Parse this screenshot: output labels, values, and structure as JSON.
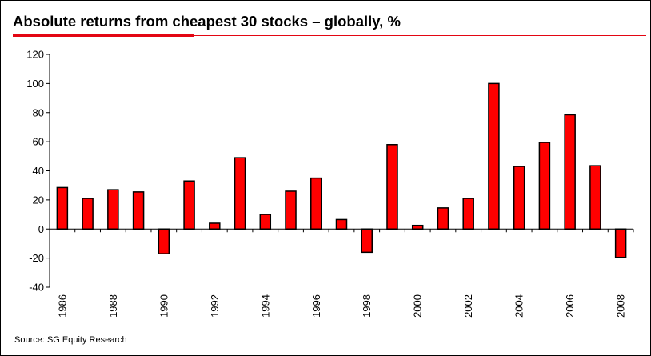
{
  "title": "Absolute returns from cheapest 30 stocks – globally, %",
  "source": "Source: SG Equity Research",
  "colors": {
    "bar_fill": "#ff0000",
    "bar_stroke": "#000000",
    "accent": "#e30613"
  },
  "chart_data": {
    "type": "bar",
    "title": "Absolute returns from cheapest 30 stocks – globally, %",
    "xlabel": "",
    "ylabel": "",
    "categories": [
      "1986",
      "1987",
      "1988",
      "1989",
      "1990",
      "1991",
      "1992",
      "1993",
      "1994",
      "1995",
      "1996",
      "1997",
      "1998",
      "1999",
      "2000",
      "2001",
      "2002",
      "2003",
      "2004",
      "2005",
      "2006",
      "2007",
      "2008"
    ],
    "x_tick_labels": [
      "1986",
      "1988",
      "1990",
      "1992",
      "1994",
      "1996",
      "1998",
      "2000",
      "2002",
      "2004",
      "2006",
      "2008"
    ],
    "values": [
      28.5,
      21,
      27,
      25.5,
      -17,
      33,
      4,
      49,
      10,
      26,
      35,
      6.5,
      -16,
      58,
      2.5,
      14.5,
      21,
      100,
      43,
      59.5,
      78.5,
      43.5,
      -19.5
    ],
    "ylim": [
      -40,
      120
    ],
    "yticks": [
      -40,
      -20,
      0,
      20,
      40,
      60,
      80,
      100,
      120
    ],
    "grid": false,
    "legend": "none"
  }
}
